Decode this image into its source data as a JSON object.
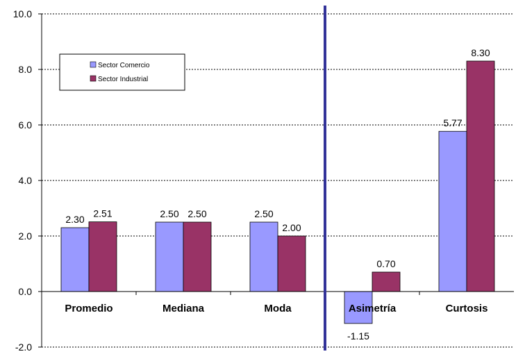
{
  "chart_data": {
    "type": "bar",
    "categories": [
      "Promedio",
      "Mediana",
      "Moda",
      "Asimetría",
      "Curtosis"
    ],
    "series": [
      {
        "name": "Sector Comercio",
        "values": [
          2.3,
          2.5,
          2.5,
          -1.15,
          5.77
        ],
        "color": "#9999ff"
      },
      {
        "name": "Sector Industrial",
        "values": [
          2.51,
          2.5,
          2.0,
          0.7,
          8.3
        ],
        "color": "#993366"
      }
    ],
    "data_labels": [
      [
        "2.30",
        "2.50",
        "2.50",
        "-1.15",
        "5.77"
      ],
      [
        "2.51",
        "2.50",
        "2.00",
        "0.70",
        "8.30"
      ]
    ],
    "ylim": [
      -2.0,
      10.0
    ],
    "yticks": [
      "-2.0",
      "0.0",
      "2.0",
      "4.0",
      "6.0",
      "8.0",
      "10.0"
    ],
    "grid": "horizontal dashed",
    "legend_position": "top-left",
    "separator_after_category": "Moda",
    "separator_color": "#333399"
  }
}
